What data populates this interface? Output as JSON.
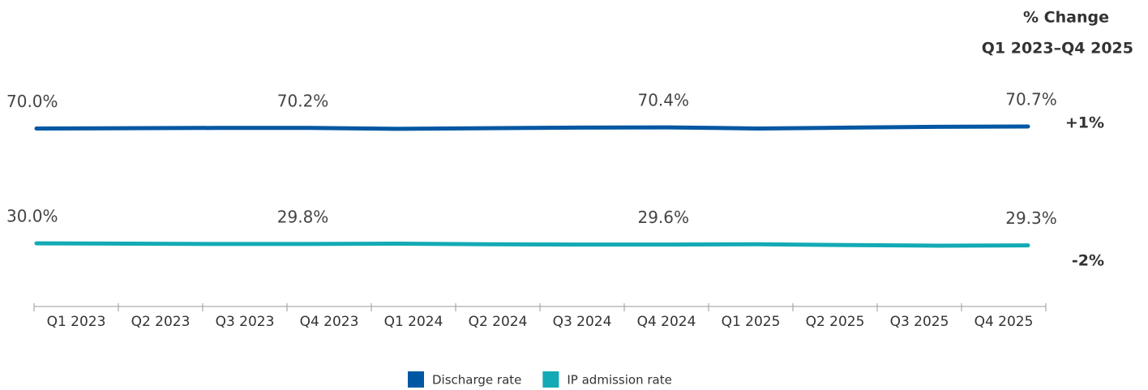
{
  "chart_data": {
    "type": "line",
    "change_header": [
      "% Change",
      "Q1 2023–Q4 2025"
    ],
    "categories": [
      "Q1 2023",
      "Q2 2023",
      "Q3 2023",
      "Q4 2023",
      "Q1 2024",
      "Q2 2024",
      "Q3 2024",
      "Q4 2024",
      "Q1 2025",
      "Q2 2025",
      "Q3 2025",
      "Q4 2025"
    ],
    "series": [
      {
        "name": "Discharge rate",
        "color": "#0057a3",
        "values": [
          70.0,
          70.1,
          70.2,
          70.2,
          69.9,
          70.1,
          70.3,
          70.4,
          70.0,
          70.3,
          70.6,
          70.7
        ],
        "value_labels": [
          "70.0%",
          null,
          null,
          "70.2%",
          null,
          null,
          null,
          "70.4%",
          null,
          null,
          null,
          "70.7%"
        ],
        "change": "+1%"
      },
      {
        "name": "IP admission rate",
        "color": "#13aab5",
        "values": [
          30.0,
          29.9,
          29.8,
          29.8,
          29.9,
          29.7,
          29.6,
          29.6,
          29.7,
          29.4,
          29.2,
          29.3
        ],
        "value_labels": [
          "30.0%",
          null,
          null,
          "29.8%",
          null,
          null,
          null,
          "29.6%",
          null,
          null,
          null,
          "29.3%"
        ],
        "change": "-2%"
      }
    ]
  }
}
